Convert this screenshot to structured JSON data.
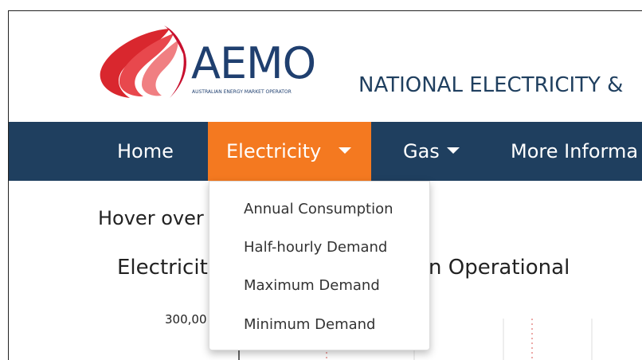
{
  "header": {
    "logo_text": "AEMO",
    "logo_subtext": "AUSTRALIAN ENERGY MARKET OPERATOR",
    "site_title": "NATIONAL ELECTRICITY &"
  },
  "nav": {
    "items": [
      "Home",
      "Electricity",
      "Gas",
      "More Informa"
    ]
  },
  "dropdown": {
    "items": [
      "Annual Consumption",
      "Half-hourly Demand",
      "Maximum Demand",
      "Minimum Demand"
    ]
  },
  "content": {
    "instruction": "Hover over",
    "chart_title_left": "Electricit",
    "chart_title_right": "n Operational",
    "y_tick": "300,00"
  }
}
